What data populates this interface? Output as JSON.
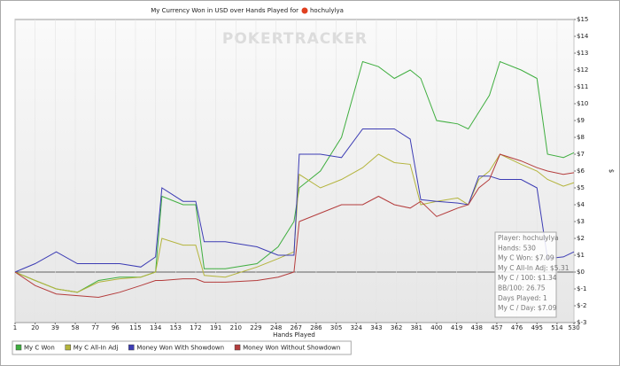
{
  "chart_data": {
    "type": "line",
    "title": "My Currency Won in USD over Hands Played for",
    "player": "hochulylya",
    "watermark": "POKERTRACKER",
    "x_label": "Hands Played",
    "y_label": "$",
    "x": [
      1,
      20,
      40,
      60,
      80,
      100,
      120,
      134,
      140,
      160,
      172,
      180,
      200,
      230,
      250,
      265,
      270,
      290,
      310,
      330,
      345,
      360,
      375,
      385,
      400,
      420,
      430,
      440,
      450,
      460,
      480,
      495,
      505,
      520,
      530
    ],
    "series": [
      {
        "name": "My C Won",
        "color": "#3fae3f",
        "values": [
          0,
          -0.5,
          -1,
          -1.2,
          -0.5,
          -0.3,
          -0.3,
          0,
          4.5,
          4,
          4,
          0.2,
          0.2,
          0.5,
          1.5,
          3,
          5,
          6,
          8,
          12.5,
          12.2,
          11.5,
          12,
          11.5,
          9,
          8.8,
          8.5,
          9.5,
          10.5,
          12.5,
          12,
          11.5,
          7,
          6.8,
          7.09
        ]
      },
      {
        "name": "My C All-In Adj",
        "color": "#b4b43c",
        "values": [
          0,
          -0.5,
          -1,
          -1.2,
          -0.6,
          -0.4,
          -0.3,
          0,
          2,
          1.6,
          1.6,
          -0.2,
          -0.3,
          0.3,
          0.8,
          1.2,
          5.8,
          5,
          5.5,
          6.2,
          7,
          6.5,
          6.4,
          4,
          4.2,
          4.4,
          4,
          5.5,
          6,
          7,
          6.4,
          6,
          5.5,
          5.1,
          5.31
        ]
      },
      {
        "name": "Money Won With Showdown",
        "color": "#3c3cb4",
        "values": [
          0,
          0.5,
          1.2,
          0.5,
          0.5,
          0.5,
          0.3,
          0.9,
          5,
          4.2,
          4.2,
          1.8,
          1.8,
          1.5,
          1,
          1,
          7,
          7,
          6.8,
          8.5,
          8.5,
          8.5,
          7.9,
          4.3,
          4.2,
          4.1,
          4,
          5.7,
          5.7,
          5.5,
          5.5,
          5,
          0.8,
          0.9,
          1.2
        ]
      },
      {
        "name": "Money Won Without Showdown",
        "color": "#b43c3c",
        "values": [
          0,
          -0.8,
          -1.3,
          -1.4,
          -1.5,
          -1.2,
          -0.8,
          -0.5,
          -0.5,
          -0.4,
          -0.4,
          -0.6,
          -0.6,
          -0.5,
          -0.3,
          0,
          3,
          3.5,
          4,
          4,
          4.5,
          4,
          3.8,
          4.2,
          3.3,
          3.8,
          4,
          5,
          5.5,
          7,
          6.6,
          6.2,
          6,
          5.8,
          5.9
        ]
      }
    ],
    "xlim": [
      1,
      530
    ],
    "xticks": [
      1,
      20,
      39,
      58,
      77,
      96,
      115,
      134,
      153,
      172,
      191,
      210,
      229,
      248,
      267,
      286,
      305,
      324,
      343,
      362,
      381,
      400,
      419,
      438,
      457,
      476,
      495,
      514,
      530
    ],
    "ylim": [
      -3,
      15
    ],
    "yticks": [
      {
        "value": 15,
        "label": "$15"
      },
      {
        "value": 14,
        "label": "$14"
      },
      {
        "value": 13,
        "label": "$13"
      },
      {
        "value": 12,
        "label": "$12"
      },
      {
        "value": 11,
        "label": "$11"
      },
      {
        "value": 10,
        "label": "$10"
      },
      {
        "value": 9,
        "label": "$9"
      },
      {
        "value": 8,
        "label": "$8"
      },
      {
        "value": 7,
        "label": "$7"
      },
      {
        "value": 6,
        "label": "$6"
      },
      {
        "value": 5,
        "label": "$5"
      },
      {
        "value": 4,
        "label": "$4"
      },
      {
        "value": 3,
        "label": "$3"
      },
      {
        "value": 2,
        "label": "$2"
      },
      {
        "value": 1,
        "label": "$1"
      },
      {
        "value": 0,
        "label": "$0"
      },
      {
        "value": -1,
        "label": "$-1"
      },
      {
        "value": -2,
        "label": "$-2"
      },
      {
        "value": -3,
        "label": "$-3"
      }
    ],
    "grid": true,
    "tooltip": [
      "Player: hochulylya",
      "Hands: 530",
      "My C Won: $7.09",
      "My C All-In Adj: $5.31",
      "My C / 100: $1.34",
      "BB/100: 26.75",
      "Days Played: 1",
      "My C / Day: $7.09"
    ]
  }
}
